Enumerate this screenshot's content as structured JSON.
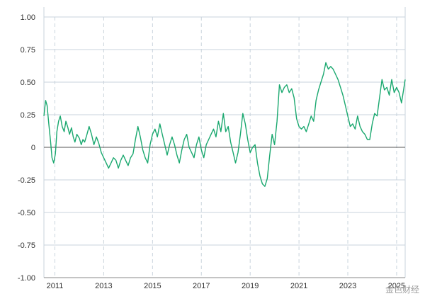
{
  "chart_data": {
    "type": "line",
    "title": "",
    "xlabel": "",
    "ylabel": "",
    "xlim": [
      2010.55,
      2025.35
    ],
    "ylim": [
      -1.0,
      1.0
    ],
    "y_ticks": [
      1.0,
      0.75,
      0.5,
      0.25,
      0,
      -0.25,
      -0.5,
      -0.75,
      -1.0
    ],
    "y_tick_labels": [
      "1.00",
      "0.75",
      "0.50",
      "0.25",
      "0",
      "-0.25",
      "-0.50",
      "-0.75",
      "-1.00"
    ],
    "x_ticks": [
      2011,
      2013,
      2015,
      2017,
      2019,
      2021,
      2023,
      2025
    ],
    "x_tick_labels": [
      "2011",
      "2013",
      "2015",
      "2017",
      "2019",
      "2021",
      "2023",
      "2025"
    ],
    "grid": {
      "horizontal": "solid",
      "vertical": "dashed"
    },
    "colors": {
      "line": "#1aa86f",
      "grid": "#c9d3dc",
      "zero_line": "#555555",
      "axis": "#888888"
    },
    "series": [
      {
        "x": [
          2010.55,
          2010.62,
          2010.68,
          2010.75,
          2010.82,
          2010.88,
          2010.95,
          2011.02,
          2011.08,
          2011.15,
          2011.22,
          2011.3,
          2011.38,
          2011.45,
          2011.52,
          2011.6,
          2011.68,
          2011.75,
          2011.82,
          2011.9,
          2012.0,
          2012.08,
          2012.15,
          2012.22,
          2012.3,
          2012.4,
          2012.5,
          2012.6,
          2012.7,
          2012.8,
          2012.9,
          2013.0,
          2013.1,
          2013.2,
          2013.3,
          2013.4,
          2013.5,
          2013.6,
          2013.7,
          2013.8,
          2013.9,
          2014.0,
          2014.1,
          2014.2,
          2014.3,
          2014.4,
          2014.5,
          2014.6,
          2014.7,
          2014.8,
          2014.9,
          2015.0,
          2015.1,
          2015.2,
          2015.3,
          2015.4,
          2015.5,
          2015.6,
          2015.7,
          2015.8,
          2015.9,
          2016.0,
          2016.1,
          2016.2,
          2016.3,
          2016.4,
          2016.5,
          2016.6,
          2016.7,
          2016.8,
          2016.9,
          2017.0,
          2017.1,
          2017.2,
          2017.3,
          2017.4,
          2017.5,
          2017.6,
          2017.7,
          2017.8,
          2017.9,
          2018.0,
          2018.1,
          2018.2,
          2018.3,
          2018.4,
          2018.5,
          2018.6,
          2018.7,
          2018.8,
          2018.9,
          2019.0,
          2019.1,
          2019.2,
          2019.3,
          2019.4,
          2019.5,
          2019.6,
          2019.7,
          2019.8,
          2019.9,
          2020.0,
          2020.1,
          2020.2,
          2020.3,
          2020.4,
          2020.5,
          2020.6,
          2020.7,
          2020.8,
          2020.9,
          2021.0,
          2021.1,
          2021.2,
          2021.3,
          2021.4,
          2021.5,
          2021.6,
          2021.7,
          2021.8,
          2021.9,
          2022.0,
          2022.1,
          2022.2,
          2022.3,
          2022.4,
          2022.5,
          2022.6,
          2022.7,
          2022.8,
          2022.9,
          2023.0,
          2023.1,
          2023.2,
          2023.3,
          2023.4,
          2023.5,
          2023.6,
          2023.7,
          2023.8,
          2023.9,
          2024.0,
          2024.1,
          2024.2,
          2024.3,
          2024.4,
          2024.5,
          2024.6,
          2024.7,
          2024.8,
          2024.9,
          2025.0,
          2025.1,
          2025.2,
          2025.3,
          2025.35
        ],
        "values": [
          0.24,
          0.36,
          0.32,
          0.18,
          0.05,
          -0.08,
          -0.12,
          -0.05,
          0.12,
          0.2,
          0.24,
          0.16,
          0.12,
          0.2,
          0.16,
          0.1,
          0.15,
          0.08,
          0.04,
          0.1,
          0.07,
          0.02,
          0.06,
          0.04,
          0.09,
          0.16,
          0.1,
          0.02,
          0.08,
          0.03,
          -0.04,
          -0.08,
          -0.12,
          -0.16,
          -0.12,
          -0.08,
          -0.1,
          -0.16,
          -0.1,
          -0.06,
          -0.1,
          -0.14,
          -0.08,
          -0.05,
          0.06,
          0.16,
          0.08,
          -0.02,
          -0.08,
          -0.12,
          0.02,
          0.1,
          0.14,
          0.08,
          0.18,
          0.1,
          0.02,
          -0.06,
          0.02,
          0.08,
          0.02,
          -0.06,
          -0.12,
          -0.02,
          0.06,
          0.1,
          0.0,
          -0.04,
          -0.08,
          0.02,
          0.08,
          -0.02,
          -0.08,
          0.02,
          0.06,
          0.1,
          0.14,
          0.08,
          0.2,
          0.12,
          0.26,
          0.12,
          0.16,
          0.04,
          -0.04,
          -0.12,
          -0.04,
          0.1,
          0.26,
          0.18,
          0.06,
          -0.04,
          0.0,
          0.02,
          -0.12,
          -0.22,
          -0.28,
          -0.3,
          -0.24,
          -0.06,
          0.1,
          0.02,
          0.2,
          0.48,
          0.42,
          0.46,
          0.48,
          0.42,
          0.45,
          0.38,
          0.22,
          0.16,
          0.14,
          0.16,
          0.12,
          0.18,
          0.24,
          0.2,
          0.36,
          0.44,
          0.5,
          0.56,
          0.65,
          0.6,
          0.62,
          0.6,
          0.56,
          0.52,
          0.46,
          0.4,
          0.32,
          0.24,
          0.16,
          0.18,
          0.14,
          0.24,
          0.16,
          0.12,
          0.1,
          0.06,
          0.06,
          0.18,
          0.26,
          0.24,
          0.38,
          0.52,
          0.44,
          0.46,
          0.4,
          0.52,
          0.42,
          0.46,
          0.42,
          0.34,
          0.46,
          0.52
        ]
      }
    ]
  },
  "watermark": "金色财经"
}
